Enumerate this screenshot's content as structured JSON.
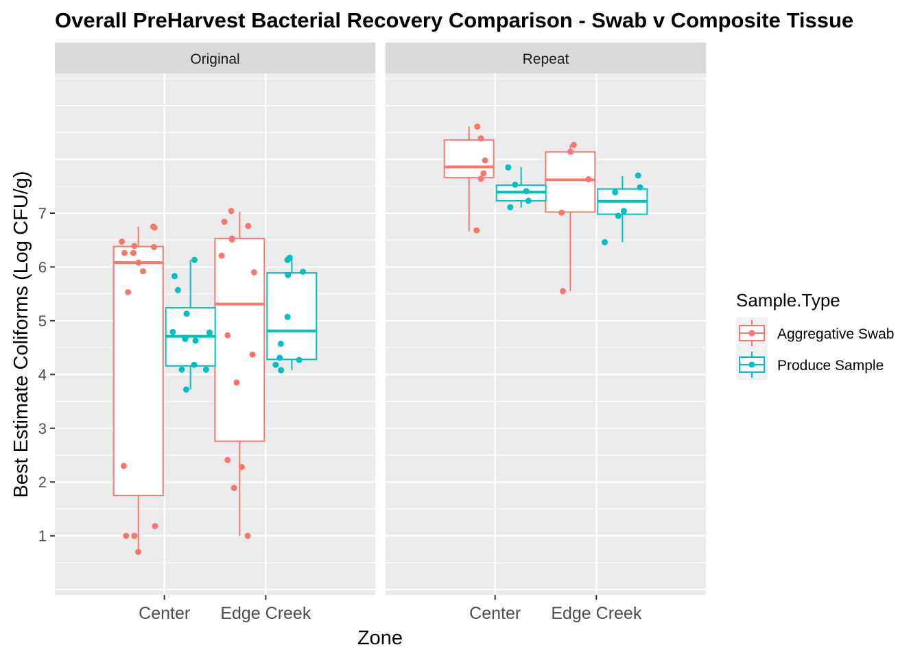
{
  "chart_data": {
    "type": "boxplot",
    "title": "Overall PreHarvest Bacterial Recovery Comparison - Swab v Composite Tissue",
    "xlabel": "Zone",
    "ylabel": "Best Estimate Coliforms (Log CFU/g)",
    "ylim": [
      -0.1,
      9.6
    ],
    "yticks": [
      1,
      2,
      3,
      4,
      5,
      6,
      7
    ],
    "categories": [
      "Center",
      "Edge Creek"
    ],
    "facets": [
      "Original",
      "Repeat"
    ],
    "grid": true,
    "legend_position": "right",
    "legend": {
      "title": "Sample.Type",
      "entries": [
        {
          "name": "Aggregative Swab",
          "color": "#F8766D"
        },
        {
          "name": "Produce Sample",
          "color": "#00BFC4"
        }
      ]
    },
    "series": [
      {
        "name": "Aggregative Swab",
        "color": "#F8766D",
        "panels": {
          "Original": {
            "Center": {
              "min": 0.7,
              "q1": 1.75,
              "median": 6.08,
              "q3": 6.38,
              "max": 6.75,
              "points": [
                6.75,
                6.73,
                6.47,
                6.39,
                6.37,
                6.26,
                6.26,
                6.08,
                5.92,
                5.53,
                2.3,
                1.18,
                1.0,
                1.0,
                0.7
              ]
            },
            "Edge Creek": {
              "min": 1.0,
              "q1": 2.76,
              "median": 5.31,
              "q3": 6.53,
              "max": 7.03,
              "points": [
                7.04,
                6.84,
                6.76,
                6.53,
                6.51,
                6.21,
                5.9,
                4.73,
                4.37,
                3.85,
                2.41,
                2.28,
                1.89,
                1.0
              ]
            }
          },
          "Repeat": {
            "Center": {
              "min": 6.66,
              "q1": 7.66,
              "median": 7.86,
              "q3": 8.36,
              "max": 8.61,
              "points": [
                8.61,
                8.39,
                7.98,
                7.74,
                7.64,
                6.68
              ]
            },
            "Edge Creek": {
              "min": 5.55,
              "q1": 7.02,
              "median": 7.62,
              "q3": 8.14,
              "max": 8.27,
              "points": [
                8.27,
                8.14,
                7.63,
                7.01,
                5.55
              ]
            }
          }
        }
      },
      {
        "name": "Produce Sample",
        "color": "#00BFC4",
        "panels": {
          "Original": {
            "Center": {
              "min": 3.72,
              "q1": 4.16,
              "median": 4.71,
              "q3": 5.24,
              "max": 6.13,
              "points": [
                6.13,
                5.83,
                5.57,
                5.13,
                4.79,
                4.78,
                4.66,
                4.63,
                4.18,
                4.09,
                4.09,
                3.72
              ]
            },
            "Edge Creek": {
              "min": 4.08,
              "q1": 4.28,
              "median": 4.81,
              "q3": 5.89,
              "max": 6.17,
              "points": [
                6.17,
                6.13,
                5.91,
                5.85,
                5.07,
                4.57,
                4.31,
                4.27,
                4.18,
                4.08
              ]
            }
          },
          "Repeat": {
            "Center": {
              "min": 7.1,
              "q1": 7.23,
              "median": 7.39,
              "q3": 7.52,
              "max": 7.86,
              "points": [
                7.85,
                7.53,
                7.41,
                7.23,
                7.11
              ]
            },
            "Edge Creek": {
              "min": 6.46,
              "q1": 6.98,
              "median": 7.22,
              "q3": 7.45,
              "max": 7.69,
              "points": [
                7.7,
                7.48,
                7.39,
                7.04,
                6.95,
                6.46
              ]
            }
          }
        }
      }
    ]
  }
}
